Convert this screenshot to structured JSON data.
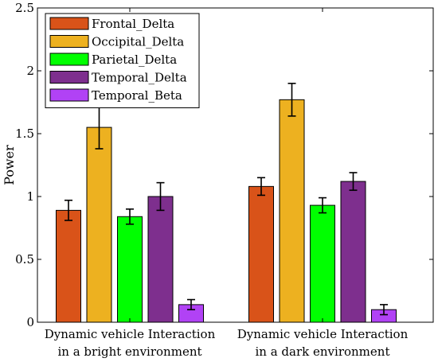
{
  "chart_data": {
    "type": "bar",
    "ylabel": "Power",
    "ylim": [
      0,
      2.5
    ],
    "yticks": [
      0,
      0.5,
      1,
      1.5,
      2,
      2.5
    ],
    "ytick_labels": [
      "0",
      "0.5",
      "1",
      "1.5",
      "2",
      "2.5"
    ],
    "grid": false,
    "legend_position": "top-left",
    "error_bars": true,
    "categories": [
      [
        "Dynamic vehicle Interaction",
        "in a bright environment"
      ],
      [
        "Dynamic vehicle Interaction",
        "in a dark environment"
      ]
    ],
    "series": [
      {
        "name": "Frontal_Delta",
        "color": "#D95319",
        "values": [
          0.89,
          1.08
        ],
        "errors": [
          0.08,
          0.07
        ]
      },
      {
        "name": "Occipital_Delta",
        "color": "#EDB120",
        "values": [
          1.55,
          1.77
        ],
        "errors": [
          0.17,
          0.13
        ]
      },
      {
        "name": "Parietal_Delta",
        "color": "#00FF00",
        "values": [
          0.84,
          0.93
        ],
        "errors": [
          0.06,
          0.06
        ]
      },
      {
        "name": "Temporal_Delta",
        "color": "#7E2F8E",
        "values": [
          1.0,
          1.12
        ],
        "errors": [
          0.11,
          0.07
        ]
      },
      {
        "name": "Temporal_Beta",
        "color": "#B142F5",
        "values": [
          0.14,
          0.1
        ],
        "errors": [
          0.04,
          0.04
        ]
      }
    ]
  }
}
